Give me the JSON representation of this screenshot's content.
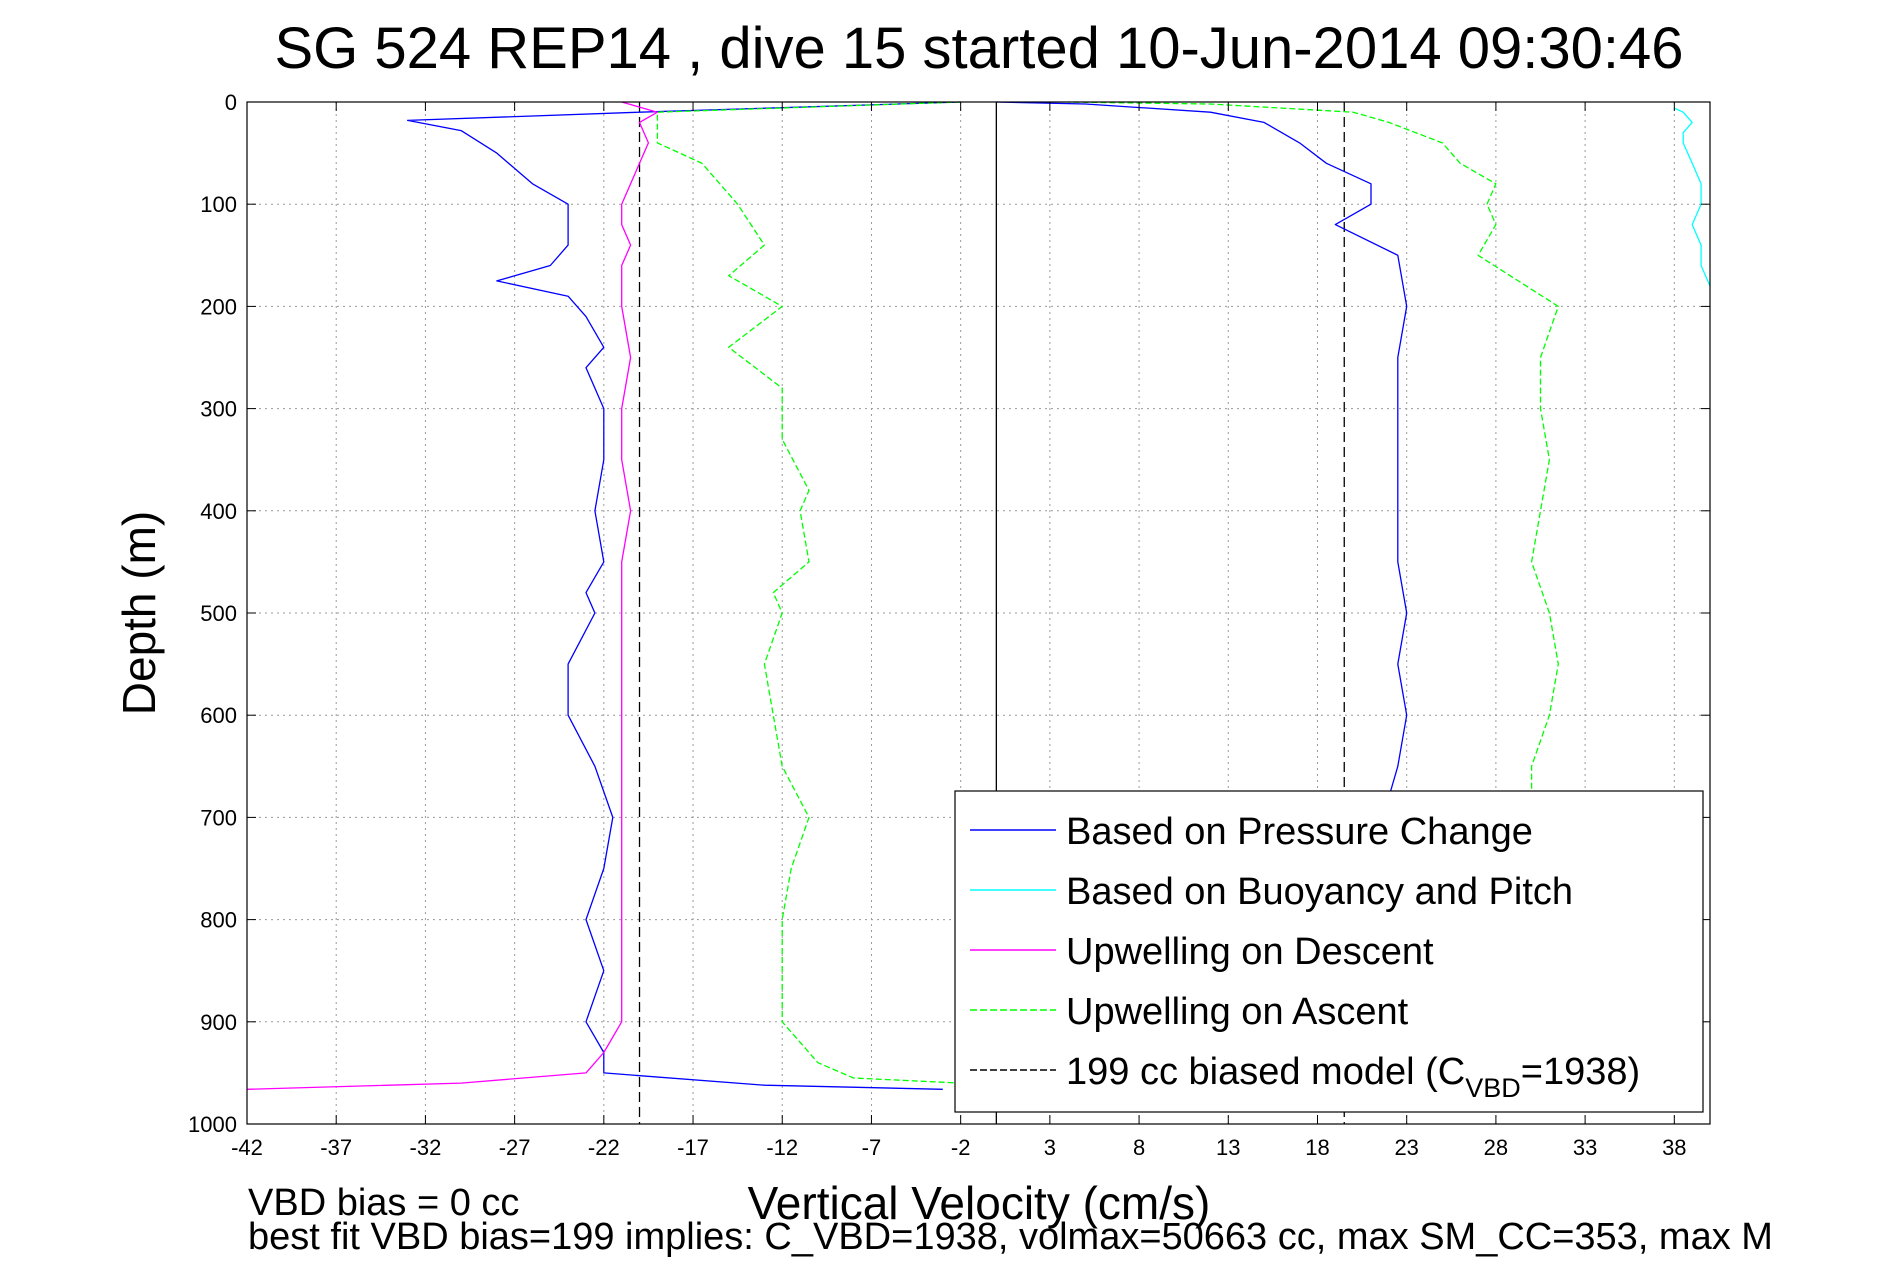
{
  "chart_data": {
    "type": "line",
    "title": "SG 524   REP14  , dive 15 started 10-Jun-2014 09:30:46",
    "xlabel": "Vertical Velocity (cm/s)",
    "ylabel": "Depth (m)",
    "xlim": [
      -42,
      40
    ],
    "ylim": [
      0,
      1000
    ],
    "y_reversed": true,
    "xticks": [
      -42,
      -37,
      -32,
      -27,
      -22,
      -17,
      -12,
      -7,
      -2,
      3,
      8,
      13,
      18,
      23,
      28,
      33,
      38
    ],
    "yticks": [
      0,
      100,
      200,
      300,
      400,
      500,
      600,
      700,
      800,
      900,
      1000
    ],
    "grid": true,
    "legend_position": "bottom-right",
    "reference_lines": [
      {
        "x": 0,
        "style": "solid",
        "color": "#000000"
      },
      {
        "x": -20,
        "style": "dashed",
        "color": "#000000"
      },
      {
        "x": 19.5,
        "style": "dashed",
        "color": "#000000"
      }
    ],
    "series": [
      {
        "name": "Based on Pressure Change",
        "color": "#0000ff",
        "style": "solid",
        "segments": [
          {
            "depth": [
              0,
              10,
              18,
              28,
              50,
              80,
              100,
              120,
              140,
              160,
              175,
              190,
              210,
              240,
              260,
              300,
              350,
              400,
              450,
              480,
              500,
              550,
              600,
              650,
              700,
              750,
              800,
              850,
              900,
              930,
              950,
              962,
              966
            ],
            "x": [
              -2,
              -20,
              -33,
              -30,
              -28,
              -26,
              -24,
              -24,
              -24,
              -25,
              -28,
              -24,
              -23,
              -22,
              -23,
              -22,
              -22,
              -22.5,
              -22,
              -23,
              -22.5,
              -24,
              -24,
              -22.5,
              -21.5,
              -22,
              -23,
              -22,
              -23,
              -22,
              -22,
              -13,
              -3
            ]
          },
          {
            "depth": [
              962,
              900,
              850,
              800,
              750,
              700,
              680,
              650,
              600,
              550,
              500,
              450,
              400,
              350,
              300,
              250,
              200,
              150,
              120,
              100,
              80,
              60,
              40,
              20,
              10,
              2,
              0
            ],
            "x": [
              18,
              20,
              21,
              21,
              21.5,
              22,
              22,
              22.5,
              23,
              22.5,
              23,
              22.5,
              22.5,
              22.5,
              22.5,
              22.5,
              23,
              22.5,
              19,
              21,
              21,
              18.5,
              17,
              15,
              12,
              5,
              0
            ]
          }
        ]
      },
      {
        "name": "Based on Buoyancy and Pitch",
        "color": "#00ffff",
        "style": "solid",
        "segments": [
          {
            "depth": [
              6,
              10,
              20,
              30,
              40,
              60,
              80,
              100,
              120,
              140,
              160,
              180
            ],
            "x": [
              38,
              38.5,
              39,
              38.5,
              38.5,
              39,
              39.5,
              39.5,
              39,
              39.5,
              39.5,
              40
            ]
          }
        ]
      },
      {
        "name": "Upwelling on Descent",
        "color": "#ff00ff",
        "style": "solid",
        "segments": [
          {
            "depth": [
              0,
              10,
              20,
              40,
              60,
              80,
              100,
              120,
              140,
              160,
              180,
              200,
              250,
              300,
              350,
              400,
              450,
              500,
              550,
              600,
              650,
              700,
              750,
              800,
              850,
              900,
              930,
              950,
              960,
              966
            ],
            "x": [
              -21,
              -19,
              -20,
              -19.5,
              -20,
              -20.5,
              -21,
              -21,
              -20.5,
              -21,
              -21,
              -21,
              -20.5,
              -21,
              -21,
              -20.5,
              -21,
              -21,
              -21,
              -21,
              -21,
              -21,
              -21,
              -21,
              -21,
              -21,
              -22,
              -23,
              -30,
              -42
            ]
          }
        ]
      },
      {
        "name": "Upwelling on Ascent",
        "color": "#00ff00",
        "style": "dashed",
        "segments": [
          {
            "depth": [
              0,
              10,
              40,
              60,
              100,
              140,
              170,
              200,
              240,
              280,
              330,
              380,
              400,
              450,
              480,
              500,
              550,
              600,
              650,
              700,
              750,
              800,
              850,
              900,
              940,
              955,
              960
            ],
            "x": [
              -2,
              -19,
              -19,
              -16.5,
              -14.5,
              -13,
              -15,
              -12,
              -15,
              -12,
              -12,
              -10.5,
              -11,
              -10.5,
              -12.5,
              -12,
              -13,
              -12.5,
              -12,
              -10.5,
              -11.5,
              -12,
              -12,
              -12,
              -10,
              -8,
              -2
            ]
          },
          {
            "depth": [
              960,
              900,
              850,
              800,
              750,
              700,
              650,
              600,
              550,
              500,
              450,
              400,
              350,
              300,
              250,
              200,
              150,
              120,
              100,
              80,
              60,
              40,
              20,
              10,
              2,
              0
            ],
            "x": [
              6,
              18,
              22,
              27,
              30,
              30,
              30,
              31,
              31.5,
              31,
              30,
              30.5,
              31,
              30.5,
              30.5,
              31.5,
              27,
              28,
              27.5,
              28,
              26,
              25,
              22,
              20,
              12,
              4
            ]
          }
        ]
      },
      {
        "name": "199 cc biased model (C",
        "name_subscript": "VBD",
        "name_suffix": "=1938)",
        "color": "#000000",
        "style": "dashed",
        "segments": []
      }
    ]
  },
  "footer": {
    "line1": "VBD bias = 0 cc",
    "line2": "best fit VBD bias=199 implies: C_VBD=1938, volmax=50663 cc, max SM_CC=353, max M"
  }
}
